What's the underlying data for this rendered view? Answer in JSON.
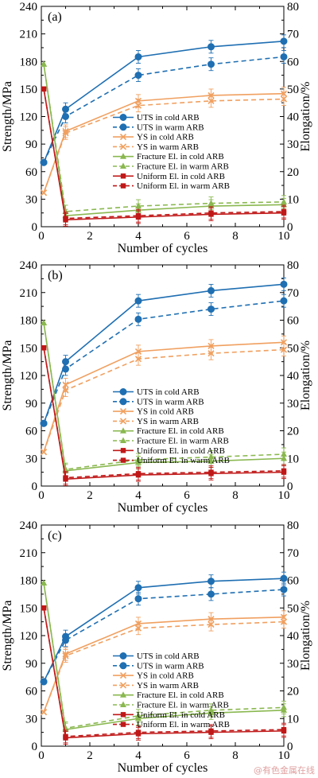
{
  "chart_data": [
    {
      "type": "line",
      "panel_label": "(a)",
      "xlabel": "Number of cycles",
      "ylabel": "Strength/MPa",
      "y2label": "Elongation/%",
      "xlim": [
        0,
        10
      ],
      "ylim": [
        0,
        240
      ],
      "y2lim": [
        0,
        80
      ],
      "x": [
        0.1,
        1,
        4,
        7,
        10
      ],
      "legend_placement": "center-right",
      "series": [
        {
          "name": "UTS in cold ARB",
          "axis": "left",
          "color": "#1f6fb2",
          "dash": "solid",
          "marker": "circle",
          "values": [
            70,
            128,
            185,
            196,
            202
          ]
        },
        {
          "name": "UTS in warm ARB",
          "axis": "left",
          "color": "#1f6fb2",
          "dash": "dashed",
          "marker": "circle",
          "values": [
            70,
            120,
            165,
            177,
            185
          ]
        },
        {
          "name": "YS in cold ARB",
          "axis": "left",
          "color": "#f0a060",
          "dash": "solid",
          "marker": "x",
          "values": [
            37,
            104,
            137,
            143,
            145
          ]
        },
        {
          "name": "YS in warm ARB",
          "axis": "left",
          "color": "#f0a060",
          "dash": "dashed",
          "marker": "x",
          "values": [
            37,
            102,
            132,
            137,
            139
          ]
        },
        {
          "name": "Fracture El. in cold ARB",
          "axis": "right",
          "color": "#8ab850",
          "dash": "solid",
          "marker": "triangle",
          "values": [
            59,
            4,
            6,
            7.5,
            8
          ]
        },
        {
          "name": "Fracture El. in warm ARB",
          "axis": "right",
          "color": "#8ab850",
          "dash": "dashed",
          "marker": "triangle",
          "values": [
            59,
            5.5,
            7.5,
            8.5,
            9
          ]
        },
        {
          "name": "Uniform El. in cold ARB",
          "axis": "right",
          "color": "#c01818",
          "dash": "solid",
          "marker": "square",
          "values": [
            50,
            2.5,
            3.5,
            4.5,
            5
          ]
        },
        {
          "name": "Uniform El. in warm ARB",
          "axis": "right",
          "color": "#c01818",
          "dash": "dashed",
          "marker": "square",
          "values": [
            50,
            3,
            4,
            5,
            5.5
          ]
        }
      ]
    },
    {
      "type": "line",
      "panel_label": "(b)",
      "xlabel": "Number of cycles",
      "ylabel": "Strength/MPa",
      "y2label": "Elongation/%",
      "xlim": [
        0,
        10
      ],
      "ylim": [
        0,
        240
      ],
      "y2lim": [
        0,
        80
      ],
      "x": [
        0.1,
        1,
        4,
        7,
        10
      ],
      "legend_placement": "bottom-right",
      "series": [
        {
          "name": "UTS in cold ARB",
          "axis": "left",
          "color": "#1f6fb2",
          "dash": "solid",
          "marker": "circle",
          "values": [
            68,
            135,
            201,
            212,
            219
          ]
        },
        {
          "name": "UTS in warm ARB",
          "axis": "left",
          "color": "#1f6fb2",
          "dash": "dashed",
          "marker": "circle",
          "values": [
            68,
            127,
            181,
            192,
            201
          ]
        },
        {
          "name": "YS in cold ARB",
          "axis": "left",
          "color": "#f0a060",
          "dash": "solid",
          "marker": "x",
          "values": [
            37,
            110,
            146,
            152,
            156
          ]
        },
        {
          "name": "YS in warm ARB",
          "axis": "left",
          "color": "#f0a060",
          "dash": "dashed",
          "marker": "x",
          "values": [
            37,
            104,
            138,
            144,
            148
          ]
        },
        {
          "name": "Fracture El. in cold ARB",
          "axis": "right",
          "color": "#8ab850",
          "dash": "solid",
          "marker": "triangle",
          "values": [
            59,
            5.5,
            8.5,
            9,
            10
          ]
        },
        {
          "name": "Fracture El. in warm ARB",
          "axis": "right",
          "color": "#8ab850",
          "dash": "dashed",
          "marker": "triangle",
          "values": [
            59,
            6,
            9.5,
            10.5,
            11.5
          ]
        },
        {
          "name": "Uniform El. in cold ARB",
          "axis": "right",
          "color": "#c01818",
          "dash": "solid",
          "marker": "square",
          "values": [
            50,
            2.5,
            4,
            4.5,
            5
          ]
        },
        {
          "name": "Uniform El. in warm ARB",
          "axis": "right",
          "color": "#c01818",
          "dash": "dashed",
          "marker": "square",
          "values": [
            50,
            3,
            4.5,
            5,
            5.5
          ]
        }
      ]
    },
    {
      "type": "line",
      "panel_label": "(c)",
      "xlabel": "Number of cycles",
      "ylabel": "Strength/MPa",
      "y2label": "Elongation/%",
      "xlim": [
        0,
        10
      ],
      "ylim": [
        0,
        240
      ],
      "y2lim": [
        0,
        80
      ],
      "x": [
        0.1,
        1,
        4,
        7,
        10
      ],
      "legend_placement": "bottom-right",
      "series": [
        {
          "name": "UTS in cold ARB",
          "axis": "left",
          "color": "#1f6fb2",
          "dash": "solid",
          "marker": "circle",
          "values": [
            70,
            119,
            172,
            179,
            182
          ]
        },
        {
          "name": "UTS in warm ARB",
          "axis": "left",
          "color": "#1f6fb2",
          "dash": "dashed",
          "marker": "circle",
          "values": [
            70,
            115,
            160,
            165,
            170
          ]
        },
        {
          "name": "YS in cold ARB",
          "axis": "left",
          "color": "#f0a060",
          "dash": "solid",
          "marker": "x",
          "values": [
            37,
            100,
            133,
            138,
            140
          ]
        },
        {
          "name": "YS in warm ARB",
          "axis": "left",
          "color": "#f0a060",
          "dash": "dashed",
          "marker": "x",
          "values": [
            37,
            98,
            128,
            132,
            135
          ]
        },
        {
          "name": "Fracture El. in cold ARB",
          "axis": "right",
          "color": "#8ab850",
          "dash": "solid",
          "marker": "triangle",
          "values": [
            59,
            6,
            10,
            12,
            13
          ]
        },
        {
          "name": "Fracture El. in warm ARB",
          "axis": "right",
          "color": "#8ab850",
          "dash": "dashed",
          "marker": "triangle",
          "values": [
            59,
            6.5,
            11,
            13,
            14
          ]
        },
        {
          "name": "Uniform El. in cold ARB",
          "axis": "right",
          "color": "#c01818",
          "dash": "solid",
          "marker": "square",
          "values": [
            50,
            3,
            4.5,
            5,
            5.5
          ]
        },
        {
          "name": "Uniform El. in warm ARB",
          "axis": "right",
          "color": "#c01818",
          "dash": "dashed",
          "marker": "square",
          "values": [
            50,
            3.5,
            5,
            5.5,
            6
          ]
        }
      ]
    }
  ],
  "ticks": {
    "left": [
      0,
      30,
      60,
      90,
      120,
      150,
      180,
      210,
      240
    ],
    "right": [
      0,
      10,
      20,
      30,
      40,
      50,
      60,
      70,
      80
    ],
    "bottom": [
      0,
      2,
      4,
      6,
      8,
      10
    ]
  },
  "watermark": "@有色金属在线"
}
